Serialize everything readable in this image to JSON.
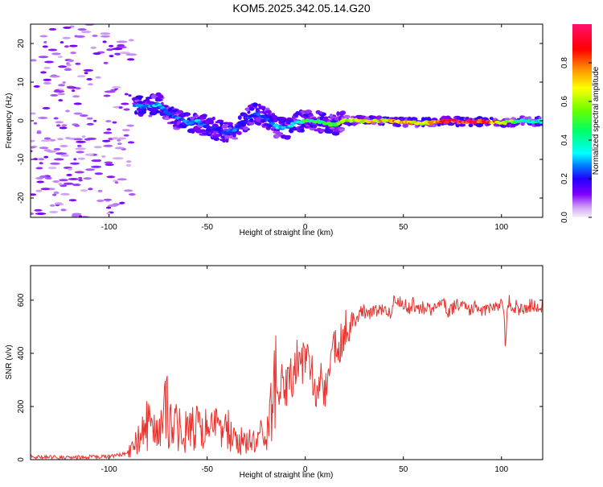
{
  "title": "KOM5.2025.342.05.14.G20",
  "chart_data": [
    {
      "type": "heatmap",
      "name": "spectrogram",
      "xlabel": "Height of straight line (km)",
      "ylabel": "Frequency (Hz)",
      "xlim": [
        -140,
        121
      ],
      "ylim": [
        -25,
        25
      ],
      "xticks": [
        -100,
        -50,
        0,
        50,
        100
      ],
      "yticks": [
        -20,
        -10,
        0,
        10,
        20
      ],
      "colorbar": {
        "label": "Normalized spectral amplitude",
        "range": [
          0,
          1
        ],
        "ticks": [
          0.0,
          0.2,
          0.4,
          0.6,
          0.8
        ],
        "tick_labels": [
          "0.0",
          "0.2",
          "0.4",
          "0.6",
          "0.8"
        ]
      },
      "ridge": {
        "x": [
          -87,
          -80,
          -75,
          -70,
          -65,
          -60,
          -55,
          -50,
          -45,
          -40,
          -35,
          -30,
          -25,
          -20,
          -15,
          -10,
          -5,
          0,
          5,
          10,
          15,
          20,
          30,
          40,
          50,
          60,
          70,
          80,
          90,
          100,
          110,
          121
        ],
        "freq": [
          4,
          3.5,
          4.5,
          2,
          0.5,
          -0.5,
          -0.2,
          -1.5,
          -2.5,
          -3,
          -2,
          0.5,
          2,
          0.5,
          -1.5,
          -2,
          -0.5,
          0,
          0,
          -0.8,
          -1,
          0.2,
          0,
          0.1,
          -0.4,
          -0.6,
          0,
          -0.3,
          -0.2,
          -0.6,
          0,
          -0.2
        ],
        "amplitude": [
          0.25,
          0.3,
          0.3,
          0.25,
          0.25,
          0.3,
          0.3,
          0.2,
          0.2,
          0.25,
          0.25,
          0.2,
          0.25,
          0.25,
          0.3,
          0.3,
          0.35,
          0.45,
          0.45,
          0.5,
          0.55,
          0.6,
          0.65,
          0.7,
          0.75,
          0.7,
          0.85,
          0.95,
          0.9,
          0.7,
          0.4,
          0.35
        ]
      }
    },
    {
      "type": "line",
      "name": "snr",
      "xlabel": "Height of straight line (km)",
      "ylabel": "SNR (v/v)",
      "xlim": [
        -140,
        121
      ],
      "ylim": [
        0,
        730
      ],
      "xticks": [
        -100,
        -50,
        0,
        50,
        100
      ],
      "yticks": [
        0,
        200,
        400,
        600
      ],
      "color": "#e8332f",
      "series": [
        {
          "name": "SNR",
          "x": [
            -140,
            -120,
            -100,
            -92,
            -88,
            -85,
            -82,
            -80,
            -78,
            -75,
            -73,
            -70,
            -68,
            -65,
            -62,
            -60,
            -57,
            -55,
            -52,
            -50,
            -47,
            -45,
            -42,
            -40,
            -37,
            -35,
            -32,
            -30,
            -28,
            -26,
            -24,
            -22,
            -20,
            -18,
            -16,
            -15,
            -13,
            -12,
            -10,
            -8,
            -6,
            -4,
            -2,
            0,
            2,
            4,
            6,
            8,
            10,
            12,
            14,
            16,
            18,
            20,
            22,
            25,
            28,
            30,
            33,
            35,
            38,
            40,
            43,
            45,
            48,
            50,
            53,
            55,
            58,
            60,
            63,
            65,
            68,
            70,
            73,
            75,
            78,
            80,
            83,
            85,
            88,
            90,
            93,
            95,
            98,
            100,
            101,
            102,
            103,
            104,
            106,
            108,
            110,
            113,
            115,
            118,
            121
          ],
          "y": [
            10,
            8,
            12,
            20,
            40,
            80,
            120,
            150,
            100,
            180,
            130,
            220,
            140,
            150,
            100,
            160,
            110,
            130,
            90,
            140,
            100,
            120,
            80,
            110,
            90,
            95,
            70,
            80,
            60,
            70,
            90,
            80,
            70,
            150,
            250,
            320,
            280,
            350,
            260,
            330,
            300,
            380,
            350,
            400,
            380,
            300,
            200,
            350,
            250,
            330,
            400,
            430,
            450,
            480,
            520,
            500,
            550,
            560,
            540,
            570,
            560,
            580,
            550,
            590,
            600,
            580,
            570,
            590,
            560,
            570,
            580,
            560,
            570,
            590,
            560,
            570,
            580,
            570,
            560,
            570,
            580,
            560,
            570,
            575,
            560,
            580,
            600,
            420,
            560,
            600,
            570,
            575,
            560,
            575,
            580,
            570,
            575
          ]
        }
      ]
    }
  ]
}
